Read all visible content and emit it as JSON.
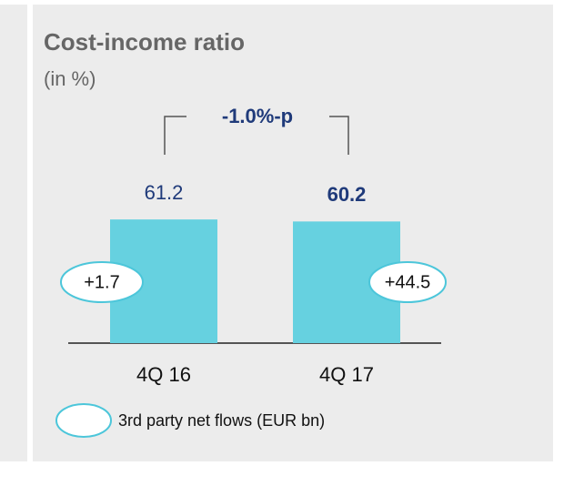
{
  "chart_data": {
    "type": "bar",
    "title": "Cost-income ratio",
    "subtitle": "(in %)",
    "annotation": "-1.0%-p",
    "categories": [
      "4Q 16",
      "4Q 17"
    ],
    "values": [
      61.2,
      60.2
    ],
    "color": "#66d1e0",
    "ylim": [
      0,
      100
    ],
    "flows": {
      "name": "3rd party net flows (EUR bn)",
      "values": [
        1.7,
        44.5
      ],
      "value_labels": [
        "+1.7",
        "+44.5"
      ],
      "color": "#4cc6da"
    }
  }
}
